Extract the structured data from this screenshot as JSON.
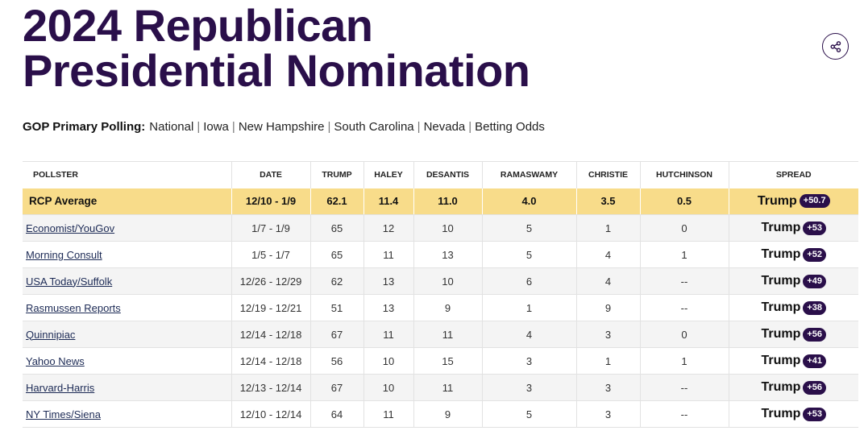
{
  "page": {
    "title_line1": "2024 Republican",
    "title_line2": "Presidential Nomination"
  },
  "subnav": {
    "label": "GOP Primary Polling:",
    "links": [
      "National",
      "Iowa",
      "New Hampshire",
      "South Carolina",
      "Nevada",
      "Betting Odds"
    ]
  },
  "table": {
    "headers": [
      "POLLSTER",
      "DATE",
      "TRUMP",
      "HALEY",
      "DESANTIS",
      "RAMASWAMY",
      "CHRISTIE",
      "HUTCHINSON",
      "SPREAD"
    ],
    "average": {
      "pollster": "RCP Average",
      "date": "12/10 - 1/9",
      "values": [
        "62.1",
        "11.4",
        "11.0",
        "4.0",
        "3.5",
        "0.5"
      ],
      "spread_name": "Trump",
      "spread_value": "+50.7"
    },
    "rows": [
      {
        "pollster": "Economist/YouGov",
        "date": "1/7 - 1/9",
        "values": [
          "65",
          "12",
          "10",
          "5",
          "1",
          "0"
        ],
        "spread_name": "Trump",
        "spread_value": "+53"
      },
      {
        "pollster": "Morning Consult",
        "date": "1/5 - 1/7",
        "values": [
          "65",
          "11",
          "13",
          "5",
          "4",
          "1"
        ],
        "spread_name": "Trump",
        "spread_value": "+52"
      },
      {
        "pollster": "USA Today/Suffolk",
        "date": "12/26 - 12/29",
        "values": [
          "62",
          "13",
          "10",
          "6",
          "4",
          "--"
        ],
        "spread_name": "Trump",
        "spread_value": "+49"
      },
      {
        "pollster": "Rasmussen Reports",
        "date": "12/19 - 12/21",
        "values": [
          "51",
          "13",
          "9",
          "1",
          "9",
          "--"
        ],
        "spread_name": "Trump",
        "spread_value": "+38"
      },
      {
        "pollster": "Quinnipiac",
        "date": "12/14 - 12/18",
        "values": [
          "67",
          "11",
          "11",
          "4",
          "3",
          "0"
        ],
        "spread_name": "Trump",
        "spread_value": "+56"
      },
      {
        "pollster": "Yahoo News",
        "date": "12/14 - 12/18",
        "values": [
          "56",
          "10",
          "15",
          "3",
          "1",
          "1"
        ],
        "spread_name": "Trump",
        "spread_value": "+41"
      },
      {
        "pollster": "Harvard-Harris",
        "date": "12/13 - 12/14",
        "values": [
          "67",
          "10",
          "11",
          "3",
          "3",
          "--"
        ],
        "spread_name": "Trump",
        "spread_value": "+56"
      },
      {
        "pollster": "NY Times/Siena",
        "date": "12/10 - 12/14",
        "values": [
          "64",
          "11",
          "9",
          "5",
          "3",
          "--"
        ],
        "spread_name": "Trump",
        "spread_value": "+53"
      }
    ]
  },
  "icons": {
    "share": "share-icon"
  },
  "colors": {
    "title": "#2a0f4a",
    "average_row": "#f8dc8a",
    "spread_badge": "#2a0f4a",
    "stripe": "#f4f4f4"
  }
}
